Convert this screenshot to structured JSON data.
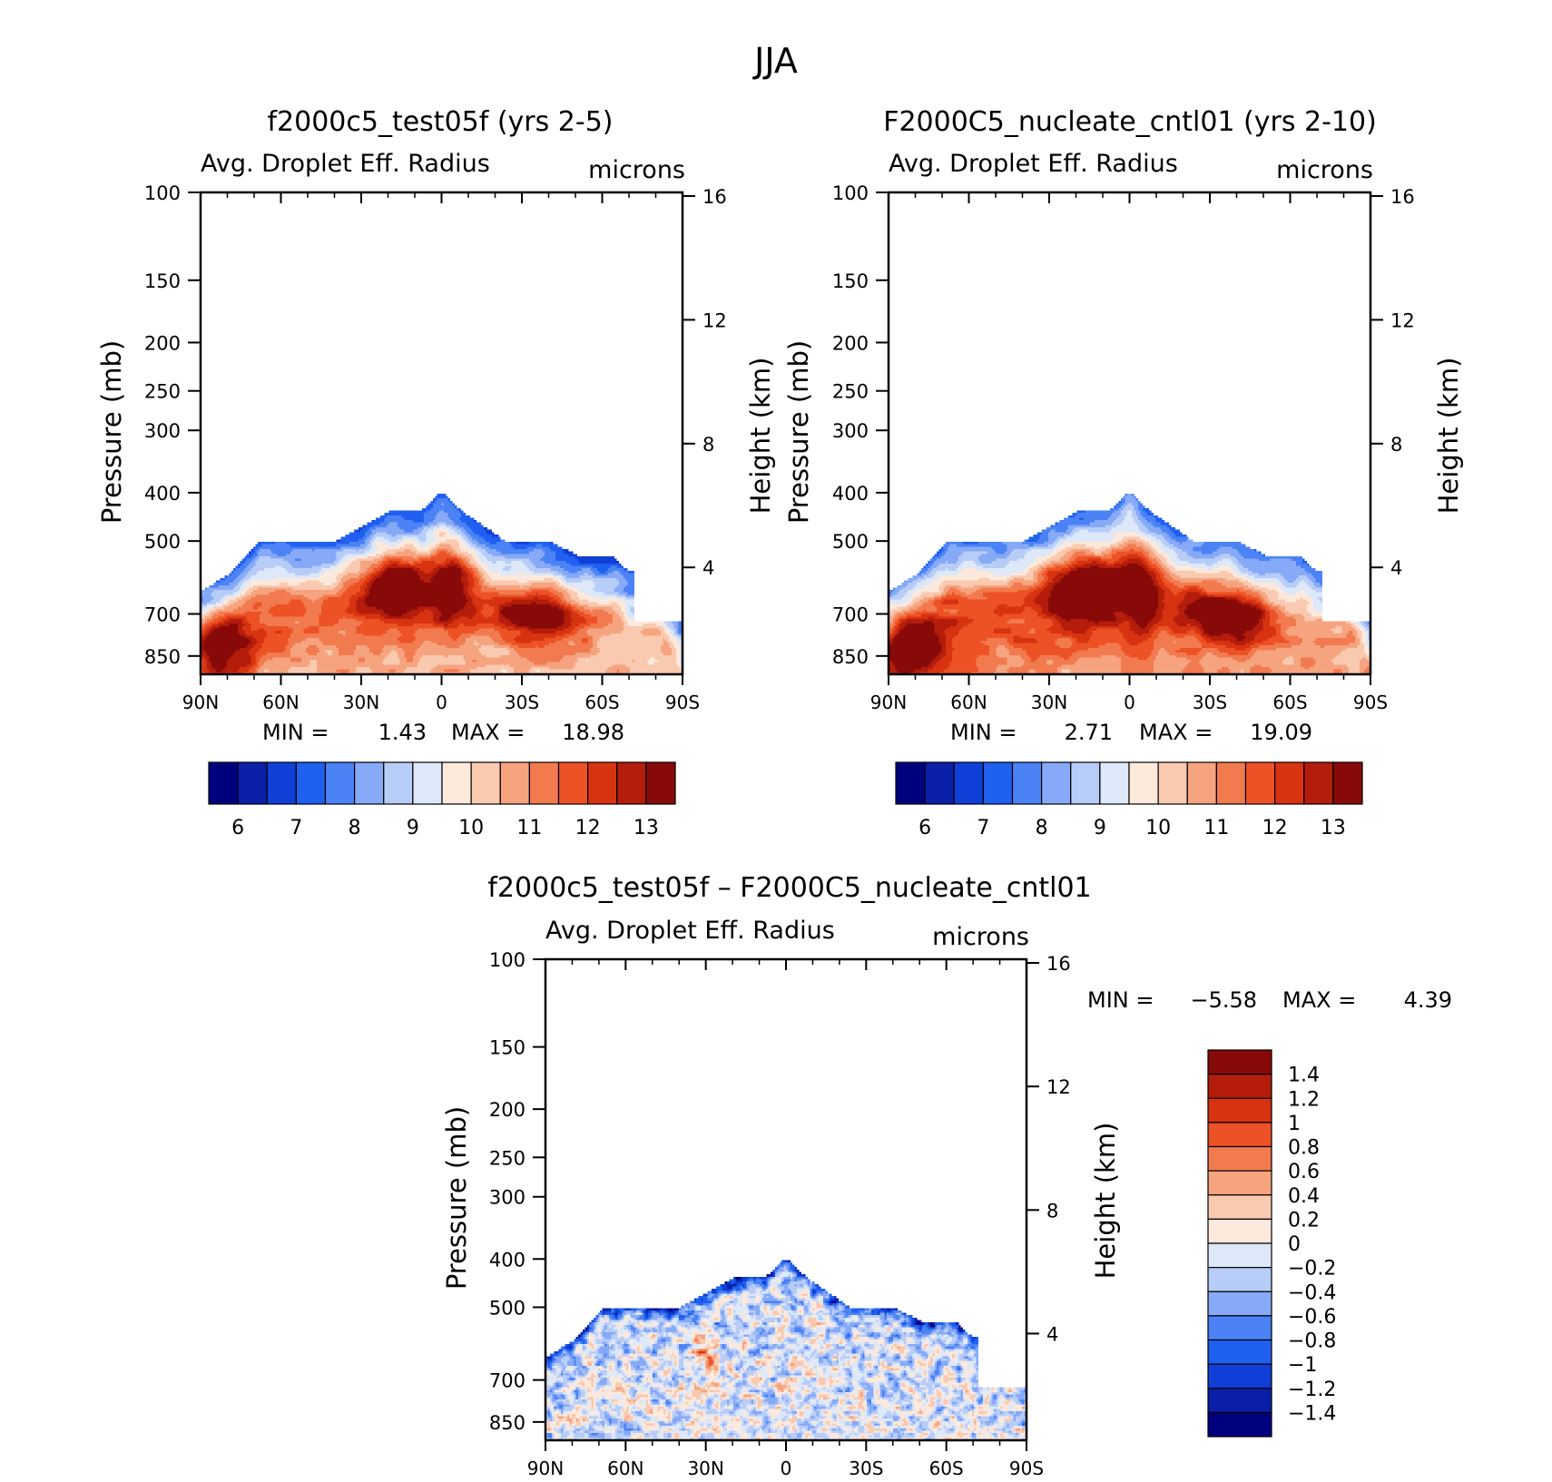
{
  "title": "JJA",
  "colors": {
    "abs_scale": [
      "#00007f",
      "#0a1fa8",
      "#0f3fd6",
      "#2060f0",
      "#4b82f5",
      "#86aaf7",
      "#b8ccf8",
      "#dde8f8",
      "#fde9dc",
      "#f9c9b0",
      "#f5a47f",
      "#f27a4f",
      "#ec5226",
      "#d73310",
      "#b41c0c",
      "#870a08"
    ],
    "diff_scale": [
      "#00007f",
      "#0a1fa8",
      "#0f3fd6",
      "#2060f0",
      "#4b82f5",
      "#86aaf7",
      "#b8ccf8",
      "#dde8f8",
      "#fde9dc",
      "#f9c9b0",
      "#f5a47f",
      "#f27a4f",
      "#ec5226",
      "#d73310",
      "#b41c0c",
      "#870a08"
    ]
  },
  "chart_data": [
    {
      "type": "heatmap",
      "title": "f2000c5_test05f (yrs 2-5)",
      "subtitle_left": "Avg. Droplet Eff. Radius",
      "subtitle_right": "microns",
      "ylabel": "Pressure (mb)",
      "ylabel_right": "Height (km)",
      "y_ticks": [
        "100",
        "150",
        "200",
        "250",
        "300",
        "400",
        "500",
        "700",
        "850"
      ],
      "y_ticks_right": [
        "16",
        "12",
        "8",
        "4"
      ],
      "x_ticks": [
        "90N",
        "60N",
        "30N",
        "0",
        "30S",
        "60S",
        "90S"
      ],
      "min_label": "MIN =",
      "min_value": "1.43",
      "max_label": "MAX =",
      "max_value": "18.98",
      "colorbar_labels": [
        "6",
        "7",
        "8",
        "9",
        "10",
        "11",
        "12",
        "13"
      ],
      "variant": "a"
    },
    {
      "type": "heatmap",
      "title": "F2000C5_nucleate_cntl01 (yrs 2-10)",
      "subtitle_left": "Avg. Droplet Eff. Radius",
      "subtitle_right": "microns",
      "ylabel": "Pressure (mb)",
      "ylabel_right": "Height (km)",
      "y_ticks": [
        "100",
        "150",
        "200",
        "250",
        "300",
        "400",
        "500",
        "700",
        "850"
      ],
      "y_ticks_right": [
        "16",
        "12",
        "8",
        "4"
      ],
      "x_ticks": [
        "90N",
        "60N",
        "30N",
        "0",
        "30S",
        "60S",
        "90S"
      ],
      "min_label": "MIN =",
      "min_value": "2.71",
      "max_label": "MAX =",
      "max_value": "19.09",
      "colorbar_labels": [
        "6",
        "7",
        "8",
        "9",
        "10",
        "11",
        "12",
        "13"
      ],
      "variant": "b"
    },
    {
      "type": "heatmap",
      "title": "f2000c5_test05f – F2000C5_nucleate_cntl01",
      "subtitle_left": "Avg. Droplet Eff. Radius",
      "subtitle_right": "microns",
      "ylabel": "Pressure (mb)",
      "ylabel_right": "Height (km)",
      "y_ticks": [
        "100",
        "150",
        "200",
        "250",
        "300",
        "400",
        "500",
        "700",
        "850"
      ],
      "y_ticks_right": [
        "16",
        "12",
        "8",
        "4"
      ],
      "x_ticks": [
        "90N",
        "60N",
        "30N",
        "0",
        "30S",
        "60S",
        "90S"
      ],
      "min_label": "MIN =",
      "min_value": "−5.58",
      "max_label": "MAX =",
      "max_value": "4.39",
      "colorbar_labels": [
        "1.4",
        "1.2",
        "1",
        "0.8",
        "0.6",
        "0.4",
        "0.2",
        "0",
        "−0.2",
        "−0.4",
        "−0.6",
        "−0.8",
        "−1",
        "−1.2",
        "−1.4"
      ],
      "variant": "diff"
    }
  ]
}
